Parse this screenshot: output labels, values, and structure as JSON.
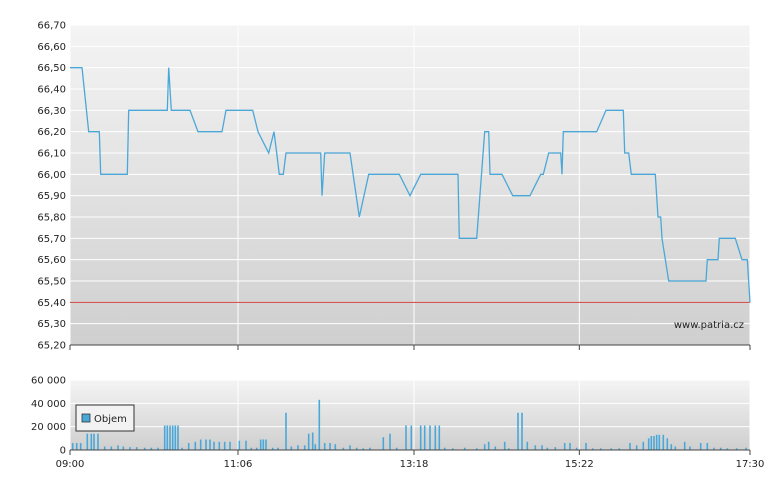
{
  "chart_data": [
    {
      "type": "line",
      "y_ticks": [
        "66,70",
        "66,60",
        "66,50",
        "66,40",
        "66,30",
        "66,20",
        "66,10",
        "66,00",
        "65,90",
        "65,80",
        "65,70",
        "65,60",
        "65,50",
        "65,40",
        "65,30",
        "65,20"
      ],
      "ylim": [
        65.2,
        66.7
      ],
      "x_ticks": [
        "09:00",
        "11:06",
        "13:18",
        "15:22",
        "17:30"
      ],
      "xlim_minutes": [
        540,
        1050
      ],
      "reference_line": 65.4,
      "watermark": "www.patria.cz",
      "grid": true,
      "series": [
        {
          "color": "#4aa8d8",
          "points": [
            [
              540,
              66.5
            ],
            [
              549,
              66.5
            ],
            [
              554,
              66.2
            ],
            [
              562,
              66.2
            ],
            [
              563,
              66.0
            ],
            [
              583,
              66.0
            ],
            [
              584,
              66.3
            ],
            [
              613,
              66.3
            ],
            [
              614,
              66.5
            ],
            [
              616,
              66.3
            ],
            [
              630,
              66.3
            ],
            [
              636,
              66.2
            ],
            [
              654,
              66.2
            ],
            [
              657,
              66.3
            ],
            [
              677,
              66.3
            ],
            [
              681,
              66.2
            ],
            [
              689,
              66.1
            ],
            [
              693,
              66.2
            ],
            [
              695,
              66.1
            ],
            [
              697,
              66.0
            ],
            [
              700,
              66.0
            ],
            [
              702,
              66.1
            ],
            [
              728,
              66.1
            ],
            [
              729,
              65.9
            ],
            [
              731,
              66.1
            ],
            [
              750,
              66.1
            ],
            [
              757,
              65.8
            ],
            [
              764,
              66.0
            ],
            [
              787,
              66.0
            ],
            [
              795,
              65.9
            ],
            [
              803,
              66.0
            ],
            [
              831,
              66.0
            ],
            [
              832,
              65.7
            ],
            [
              845,
              65.7
            ],
            [
              851,
              66.2
            ],
            [
              854,
              66.2
            ],
            [
              855,
              66.0
            ],
            [
              864,
              66.0
            ],
            [
              872,
              65.9
            ],
            [
              885,
              65.9
            ],
            [
              893,
              66.0
            ],
            [
              895,
              66.0
            ],
            [
              899,
              66.1
            ],
            [
              908,
              66.1
            ],
            [
              909,
              66.0
            ],
            [
              910,
              66.2
            ],
            [
              935,
              66.2
            ],
            [
              942,
              66.3
            ],
            [
              955,
              66.3
            ],
            [
              956,
              66.1
            ],
            [
              959,
              66.1
            ],
            [
              961,
              66.0
            ],
            [
              979,
              66.0
            ],
            [
              981,
              65.8
            ],
            [
              983,
              65.8
            ],
            [
              984,
              65.7
            ],
            [
              989,
              65.5
            ],
            [
              1017,
              65.5
            ],
            [
              1018,
              65.6
            ],
            [
              1026,
              65.6
            ],
            [
              1027,
              65.7
            ],
            [
              1039,
              65.7
            ],
            [
              1044,
              65.6
            ],
            [
              1048,
              65.6
            ],
            [
              1050,
              65.4
            ]
          ]
        }
      ]
    },
    {
      "type": "bar",
      "y_ticks": [
        "60 000",
        "40 000",
        "20 000",
        "0"
      ],
      "ylim": [
        0,
        60000
      ],
      "x_ticks": [
        "09:00",
        "11:06",
        "13:18",
        "15:22",
        "17:30"
      ],
      "xlim_minutes": [
        540,
        1050
      ],
      "legend": {
        "label": "Objem",
        "placement": "top-left"
      },
      "grid": true,
      "series": [
        {
          "name": "Objem",
          "color": "#4aa8d8",
          "bars": [
            [
              542,
              6000
            ],
            [
              545,
              6000
            ],
            [
              548,
              6000
            ],
            [
              553,
              14000
            ],
            [
              556,
              14000
            ],
            [
              558,
              14000
            ],
            [
              561,
              14000
            ],
            [
              566,
              3000
            ],
            [
              571,
              3000
            ],
            [
              576,
              4000
            ],
            [
              580,
              3000
            ],
            [
              585,
              2500
            ],
            [
              590,
              2500
            ],
            [
              596,
              2000
            ],
            [
              601,
              2000
            ],
            [
              606,
              2000
            ],
            [
              611,
              21000
            ],
            [
              613,
              21000
            ],
            [
              615,
              21000
            ],
            [
              617,
              21000
            ],
            [
              619,
              21000
            ],
            [
              621,
              21000
            ],
            [
              624,
              2000
            ],
            [
              629,
              6000
            ],
            [
              634,
              7000
            ],
            [
              638,
              9000
            ],
            [
              642,
              9000
            ],
            [
              645,
              9000
            ],
            [
              648,
              7000
            ],
            [
              652,
              7000
            ],
            [
              656,
              7000
            ],
            [
              660,
              7000
            ],
            [
              667,
              8000
            ],
            [
              672,
              8000
            ],
            [
              676,
              2000
            ],
            [
              680,
              2000
            ],
            [
              683,
              9000
            ],
            [
              685,
              9000
            ],
            [
              687,
              9000
            ],
            [
              692,
              2000
            ],
            [
              696,
              2000
            ],
            [
              702,
              32000
            ],
            [
              706,
              3000
            ],
            [
              711,
              4000
            ],
            [
              716,
              4000
            ],
            [
              719,
              14000
            ],
            [
              722,
              15000
            ],
            [
              724,
              5000
            ],
            [
              727,
              43000
            ],
            [
              731,
              6000
            ],
            [
              735,
              6000
            ],
            [
              739,
              5000
            ],
            [
              745,
              2000
            ],
            [
              750,
              4000
            ],
            [
              755,
              2000
            ],
            [
              760,
              1500
            ],
            [
              765,
              2000
            ],
            [
              775,
              11000
            ],
            [
              780,
              14000
            ],
            [
              785,
              2000
            ],
            [
              792,
              21000
            ],
            [
              796,
              21000
            ],
            [
              803,
              21000
            ],
            [
              806,
              21000
            ],
            [
              810,
              21000
            ],
            [
              814,
              21000
            ],
            [
              817,
              21000
            ],
            [
              821,
              2000
            ],
            [
              827,
              1500
            ],
            [
              836,
              2000
            ],
            [
              845,
              1500
            ],
            [
              851,
              5000
            ],
            [
              854,
              7000
            ],
            [
              859,
              3000
            ],
            [
              866,
              7000
            ],
            [
              869,
              1500
            ],
            [
              876,
              32000
            ],
            [
              879,
              32000
            ],
            [
              883,
              7000
            ],
            [
              889,
              4000
            ],
            [
              894,
              4000
            ],
            [
              898,
              2000
            ],
            [
              904,
              2500
            ],
            [
              911,
              6000
            ],
            [
              915,
              6000
            ],
            [
              920,
              2000
            ],
            [
              927,
              6000
            ],
            [
              932,
              1500
            ],
            [
              938,
              1500
            ],
            [
              946,
              1500
            ],
            [
              952,
              1500
            ],
            [
              960,
              6000
            ],
            [
              965,
              4000
            ],
            [
              970,
              7000
            ],
            [
              974,
              10000
            ],
            [
              976,
              12000
            ],
            [
              978,
              12000
            ],
            [
              980,
              13000
            ],
            [
              982,
              13000
            ],
            [
              985,
              13000
            ],
            [
              988,
              10000
            ],
            [
              991,
              5000
            ],
            [
              994,
              3000
            ],
            [
              1001,
              7000
            ],
            [
              1005,
              3000
            ],
            [
              1013,
              6000
            ],
            [
              1018,
              6000
            ],
            [
              1023,
              2000
            ],
            [
              1028,
              2000
            ],
            [
              1033,
              1500
            ],
            [
              1040,
              1500
            ],
            [
              1047,
              2000
            ]
          ]
        }
      ]
    }
  ]
}
